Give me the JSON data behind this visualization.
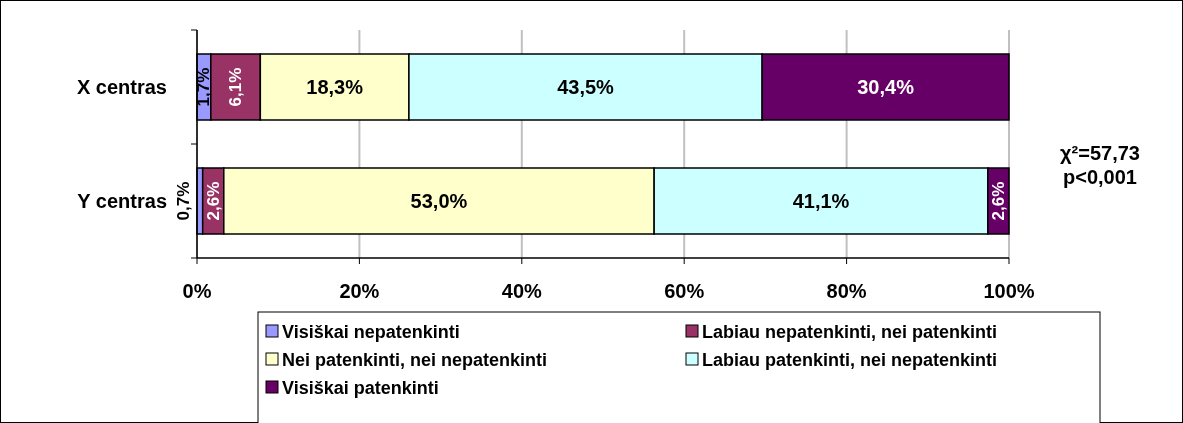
{
  "chart_data": {
    "type": "bar",
    "orientation": "horizontal",
    "stacked": true,
    "categories": [
      "X centras",
      "Y centras"
    ],
    "series": [
      {
        "name": "Visiškai nepatenkinti",
        "color": "#9999ff",
        "values": [
          1.7,
          0.7
        ],
        "value_labels": [
          "1,7%",
          "0,7%"
        ]
      },
      {
        "name": "Labiau nepatenkinti, nei patenkinti",
        "color": "#993366",
        "values": [
          6.1,
          2.6
        ],
        "value_labels": [
          "6,1%",
          "2,6%"
        ]
      },
      {
        "name": "Nei patenkinti, nei nepatenkinti",
        "color": "#ffffcc",
        "values": [
          18.3,
          53.0
        ],
        "value_labels": [
          "18,3%",
          "53,0%"
        ]
      },
      {
        "name": "Labiau patenkinti, nei nepatenkinti",
        "color": "#ccffff",
        "values": [
          43.5,
          41.1
        ],
        "value_labels": [
          "43,5%",
          "41,1%"
        ]
      },
      {
        "name": "Visiškai patenkinti",
        "color": "#660066",
        "values": [
          30.4,
          2.6
        ],
        "value_labels": [
          "30,4%",
          "2,6%"
        ]
      }
    ],
    "xlim": [
      0,
      100
    ],
    "xticks": [
      {
        "value": 0,
        "label": "0%"
      },
      {
        "value": 20,
        "label": "20%"
      },
      {
        "value": 40,
        "label": "40%"
      },
      {
        "value": 60,
        "label": "60%"
      },
      {
        "value": 80,
        "label": "80%"
      },
      {
        "value": 100,
        "label": "100%"
      }
    ],
    "grid": "x",
    "legend": "bottom",
    "annotations": [
      "χ²=57,73",
      "p<0,001"
    ]
  }
}
